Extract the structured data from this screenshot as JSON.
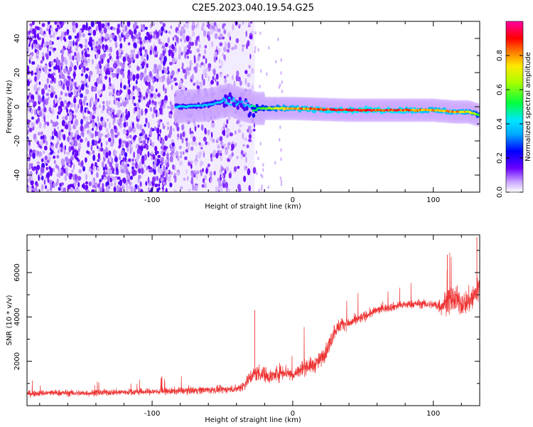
{
  "title": "C2E5.2023.040.19.54.G25",
  "chart_data": [
    {
      "type": "heatmap",
      "xlabel": "Height of straight line (km)",
      "ylabel": "Frequency (Hz)",
      "xlim": [
        -189,
        133
      ],
      "ylim": [
        -50,
        50
      ],
      "xticks": [
        -100,
        0,
        100
      ],
      "yticks": [
        -40,
        -20,
        0,
        20,
        40
      ],
      "colorbar": {
        "label": "Normalized spectral amplitude",
        "range": [
          0,
          1
        ],
        "ticks": [
          0.0,
          0.2,
          0.4,
          0.6,
          0.8
        ],
        "colors": [
          "#ffffff",
          "#c9a4ff",
          "#6a00ff",
          "#0000ff",
          "#00e5ff",
          "#00ff40",
          "#a8ff00",
          "#ffe800",
          "#ff0000",
          "#ff00a0"
        ]
      },
      "features": [
        {
          "name": "noise-region",
          "x": [
            -189,
            -27
          ],
          "y": [
            -50,
            50
          ],
          "amplitude": 0.1
        },
        {
          "name": "signal-trace",
          "x": [
            -83,
            133
          ],
          "y_center": [
            0,
            -2
          ],
          "amplitude": [
            0.35,
            0.95
          ]
        }
      ],
      "signal_trace": {
        "x": [
          -83,
          -60,
          -45,
          -35,
          -25,
          -10,
          0,
          20,
          40,
          60,
          80,
          100,
          115,
          125,
          133
        ],
        "y": [
          0,
          1,
          4,
          1,
          -1,
          -1,
          -1,
          -1.5,
          -2,
          -2,
          -2,
          -2,
          -3,
          -3,
          -5
        ],
        "amplitude": [
          0.42,
          0.4,
          0.38,
          0.35,
          0.55,
          0.7,
          0.8,
          0.9,
          0.95,
          0.95,
          0.9,
          0.8,
          0.85,
          0.75,
          0.6
        ]
      },
      "grid": false
    },
    {
      "type": "line",
      "xlabel": "Height of straight line (km)",
      "ylabel": "SNR (10 * v/v)",
      "xlim": [
        -189,
        133
      ],
      "ylim": [
        0,
        7700
      ],
      "xticks": [
        -100,
        0,
        100
      ],
      "yticks": [
        2000,
        4000,
        6000
      ],
      "series": [
        {
          "color": "#ee3333",
          "x": [
            -189,
            -170,
            -150,
            -130,
            -110,
            -90,
            -70,
            -50,
            -40,
            -35,
            -30,
            -25,
            -20,
            -15,
            -10,
            -5,
            0,
            5,
            10,
            15,
            20,
            25,
            30,
            35,
            40,
            50,
            60,
            70,
            80,
            90,
            100,
            105,
            110,
            115,
            120,
            125,
            130,
            133
          ],
          "y": [
            550,
            580,
            560,
            600,
            620,
            640,
            700,
            720,
            760,
            900,
            1300,
            1500,
            1400,
            1300,
            1500,
            1550,
            1350,
            1600,
            1800,
            1800,
            2100,
            2600,
            3400,
            3700,
            3700,
            4000,
            4300,
            4450,
            4550,
            4600,
            4550,
            4500,
            4700,
            4800,
            4600,
            4700,
            5000,
            5500
          ],
          "noise": [
            220,
            220,
            220,
            220,
            230,
            240,
            260,
            260,
            260,
            400,
            500,
            600,
            550,
            500,
            600,
            550,
            500,
            550,
            550,
            550,
            550,
            600,
            550,
            450,
            400,
            350,
            300,
            300,
            300,
            300,
            300,
            600,
            900,
            1000,
            800,
            900,
            1100,
            1300
          ]
        }
      ],
      "annotations": [
        {
          "x": -27,
          "y": 4300
        },
        {
          "x": 110,
          "y": 6800
        },
        {
          "x": 131,
          "y": 7600
        }
      ],
      "grid": false
    }
  ]
}
